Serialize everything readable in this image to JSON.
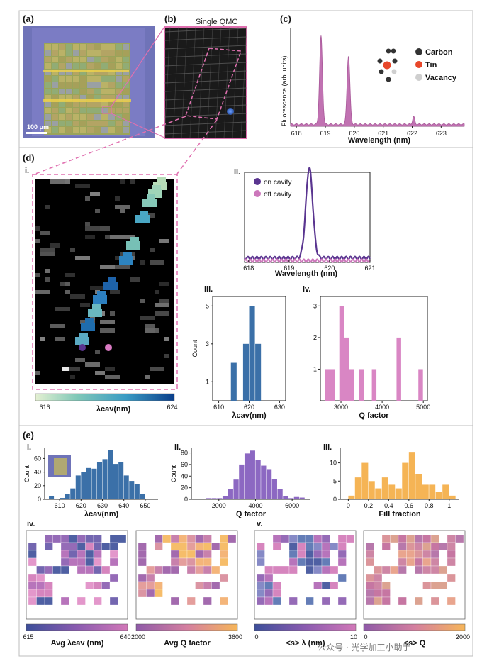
{
  "colors": {
    "pink": "#cc77bb",
    "purple": "#5a3590",
    "blue": "#3b70a8",
    "orange": "#f5b455",
    "pinkmid": "#d47fc0",
    "barPink": "#d986c4",
    "barPurple": "#8c68c2"
  },
  "panel_a": {
    "label": "(a)",
    "scale_text": "100 μm"
  },
  "panel_b": {
    "label": "(b)",
    "title": "Single QMC"
  },
  "panel_c": {
    "label": "(c)"
  },
  "panel_d": {
    "label": "(d)",
    "sub_i": "i.",
    "sub_ii": "ii.",
    "sub_iii": "iii.",
    "sub_iv": "iv.",
    "colorbar": {
      "min": "616",
      "max": "624",
      "label": "λcav(nm)"
    }
  },
  "panel_e": {
    "label": "(e)",
    "sub_i": "i.",
    "sub_ii": "ii.",
    "sub_iii": "iii.",
    "sub_iv": "iv.",
    "sub_v": "v.",
    "colorbars": [
      {
        "min": "615",
        "max": "640",
        "label": "Avg λcav (nm)",
        "colors": [
          "#3d4f9a",
          "#8a5bb0",
          "#d278b8"
        ]
      },
      {
        "min": "2000",
        "max": "3600",
        "label": "Avg Q factor",
        "colors": [
          "#8f5aa8",
          "#d47fa0",
          "#f6b65a"
        ]
      },
      {
        "min": "0",
        "max": "10",
        "label": "<s> λ (nm)",
        "colors": [
          "#3d4f9a",
          "#8a5bb0",
          "#d278b8"
        ]
      },
      {
        "min": "0",
        "max": "2000",
        "label": "<s> Q",
        "colors": [
          "#8f5aa8",
          "#d47fa0",
          "#f6b65a"
        ]
      }
    ]
  },
  "watermark": "公众号 · 光学加工小助手",
  "chart_data": [
    {
      "id": "c",
      "type": "area",
      "title": "",
      "xlabel": "Wavelength (nm)",
      "ylabel": "Fluorescence (arb. units)",
      "xlim": [
        617.8,
        623.8
      ],
      "xticks": [
        618,
        619,
        620,
        621,
        622,
        623
      ],
      "peaks": [
        {
          "x": 618.85,
          "h": 0.9,
          "w": 0.07
        },
        {
          "x": 619.8,
          "h": 0.7,
          "w": 0.07
        },
        {
          "x": 622.05,
          "h": 0.08,
          "w": 0.05
        }
      ],
      "legend": [
        "Carbon",
        "Tin",
        "Vacancy"
      ],
      "legend_colors": [
        "#333333",
        "#e8472a",
        "#cfcfcf"
      ]
    },
    {
      "id": "d-ii",
      "type": "line",
      "xlabel": "Wavelength (nm)",
      "ylabel": "",
      "xlim": [
        617.9,
        621
      ],
      "xticks": [
        618,
        619,
        620,
        621
      ],
      "series": [
        {
          "name": "on cavity",
          "color": "#5a3590",
          "peak": 619.5,
          "h": 1.0,
          "w": 0.12,
          "base": 0.05
        },
        {
          "name": "off cavity",
          "color": "#cc77bb",
          "peak": 619.5,
          "h": 0.0,
          "w": 0.12,
          "base": 0.02
        }
      ]
    },
    {
      "id": "d-iii",
      "type": "bar",
      "xlabel": "λcav(nm)",
      "ylabel": "Count",
      "xlim": [
        608,
        632
      ],
      "xticks": [
        610,
        620,
        630
      ],
      "yticks": [
        1,
        3,
        5
      ],
      "ylim": [
        0,
        5.5
      ],
      "color": "#3b70a8",
      "bins": [
        {
          "x0": 614,
          "x1": 616,
          "v": 2
        },
        {
          "x0": 618,
          "x1": 620,
          "v": 3
        },
        {
          "x0": 620,
          "x1": 622,
          "v": 5
        },
        {
          "x0": 622,
          "x1": 624,
          "v": 3
        }
      ]
    },
    {
      "id": "d-iv",
      "type": "bar",
      "xlabel": "Q factor",
      "ylabel": "",
      "xlim": [
        2500,
        5100
      ],
      "xticks": [
        3000,
        4000,
        5000
      ],
      "yticks": [
        1,
        2,
        3
      ],
      "ylim": [
        0,
        3.3
      ],
      "color": "#d986c4",
      "bins": [
        {
          "x0": 2620,
          "x1": 2740,
          "v": 1
        },
        {
          "x0": 2740,
          "x1": 2860,
          "v": 1
        },
        {
          "x0": 2960,
          "x1": 3080,
          "v": 3
        },
        {
          "x0": 3080,
          "x1": 3200,
          "v": 2
        },
        {
          "x0": 3200,
          "x1": 3320,
          "v": 1
        },
        {
          "x0": 3440,
          "x1": 3560,
          "v": 1
        },
        {
          "x0": 3750,
          "x1": 3870,
          "v": 1
        },
        {
          "x0": 4350,
          "x1": 4470,
          "v": 2
        },
        {
          "x0": 4880,
          "x1": 5000,
          "v": 1
        }
      ]
    },
    {
      "id": "e-i",
      "type": "bar",
      "xlabel": "λcav(nm)",
      "ylabel": "Count",
      "xlim": [
        603,
        656
      ],
      "xticks": [
        610,
        620,
        630,
        640,
        650
      ],
      "yticks": [
        0,
        20,
        40,
        60
      ],
      "ylim": [
        0,
        75
      ],
      "color": "#3b70a8",
      "bins": [
        {
          "x0": 605,
          "x1": 607.5,
          "v": 5
        },
        {
          "x0": 607.5,
          "x1": 610,
          "v": 1
        },
        {
          "x0": 610,
          "x1": 612.5,
          "v": 2
        },
        {
          "x0": 612.5,
          "x1": 615,
          "v": 8
        },
        {
          "x0": 615,
          "x1": 617.5,
          "v": 16
        },
        {
          "x0": 617.5,
          "x1": 620,
          "v": 35
        },
        {
          "x0": 620,
          "x1": 622.5,
          "v": 40
        },
        {
          "x0": 622.5,
          "x1": 625,
          "v": 46
        },
        {
          "x0": 625,
          "x1": 627.5,
          "v": 45
        },
        {
          "x0": 627.5,
          "x1": 630,
          "v": 55
        },
        {
          "x0": 630,
          "x1": 632.5,
          "v": 59
        },
        {
          "x0": 632.5,
          "x1": 635,
          "v": 72
        },
        {
          "x0": 635,
          "x1": 637.5,
          "v": 52
        },
        {
          "x0": 637.5,
          "x1": 640,
          "v": 55
        },
        {
          "x0": 640,
          "x1": 642.5,
          "v": 35
        },
        {
          "x0": 642.5,
          "x1": 645,
          "v": 27
        },
        {
          "x0": 645,
          "x1": 647.5,
          "v": 22
        },
        {
          "x0": 647.5,
          "x1": 650,
          "v": 8
        }
      ]
    },
    {
      "id": "e-ii",
      "type": "bar",
      "xlabel": "Q factor",
      "ylabel": "Count",
      "xlim": [
        500,
        7000
      ],
      "xticks": [
        2000,
        4000,
        6000
      ],
      "yticks": [
        0,
        20,
        40,
        60,
        80
      ],
      "ylim": [
        0,
        88
      ],
      "color": "#8c68c2",
      "bins": [
        {
          "x0": 1000,
          "x1": 1300,
          "v": 1
        },
        {
          "x0": 1300,
          "x1": 1600,
          "v": 2
        },
        {
          "x0": 1600,
          "x1": 1900,
          "v": 2
        },
        {
          "x0": 1900,
          "x1": 2200,
          "v": 2
        },
        {
          "x0": 2200,
          "x1": 2500,
          "v": 6
        },
        {
          "x0": 2500,
          "x1": 2800,
          "v": 18
        },
        {
          "x0": 2800,
          "x1": 3100,
          "v": 34
        },
        {
          "x0": 3100,
          "x1": 3400,
          "v": 60
        },
        {
          "x0": 3400,
          "x1": 3700,
          "v": 79
        },
        {
          "x0": 3700,
          "x1": 4000,
          "v": 84
        },
        {
          "x0": 4000,
          "x1": 4300,
          "v": 68
        },
        {
          "x0": 4300,
          "x1": 4600,
          "v": 58
        },
        {
          "x0": 4600,
          "x1": 4900,
          "v": 52
        },
        {
          "x0": 4900,
          "x1": 5200,
          "v": 35
        },
        {
          "x0": 5200,
          "x1": 5500,
          "v": 18
        },
        {
          "x0": 5500,
          "x1": 5800,
          "v": 6
        },
        {
          "x0": 5800,
          "x1": 6100,
          "v": 2
        },
        {
          "x0": 6100,
          "x1": 6400,
          "v": 4
        },
        {
          "x0": 6400,
          "x1": 6700,
          "v": 3
        }
      ]
    },
    {
      "id": "e-iii",
      "type": "bar",
      "xlabel": "Fill fraction",
      "ylabel": "",
      "xlim": [
        -0.08,
        1.1
      ],
      "xticks": [
        0,
        0.2,
        0.4,
        0.6,
        0.8,
        1.0
      ],
      "yticks": [
        0,
        5,
        10
      ],
      "ylim": [
        0,
        14
      ],
      "color": "#f5b455",
      "bins": [
        {
          "x0": 0,
          "x1": 0.066,
          "v": 1
        },
        {
          "x0": 0.066,
          "x1": 0.133,
          "v": 6
        },
        {
          "x0": 0.133,
          "x1": 0.2,
          "v": 10
        },
        {
          "x0": 0.2,
          "x1": 0.266,
          "v": 5
        },
        {
          "x0": 0.266,
          "x1": 0.333,
          "v": 3
        },
        {
          "x0": 0.333,
          "x1": 0.4,
          "v": 6
        },
        {
          "x0": 0.4,
          "x1": 0.466,
          "v": 4
        },
        {
          "x0": 0.466,
          "x1": 0.533,
          "v": 3
        },
        {
          "x0": 0.533,
          "x1": 0.6,
          "v": 10
        },
        {
          "x0": 0.6,
          "x1": 0.666,
          "v": 13
        },
        {
          "x0": 0.666,
          "x1": 0.733,
          "v": 7
        },
        {
          "x0": 0.733,
          "x1": 0.8,
          "v": 4
        },
        {
          "x0": 0.8,
          "x1": 0.866,
          "v": 4
        },
        {
          "x0": 0.866,
          "x1": 0.933,
          "v": 2
        },
        {
          "x0": 0.933,
          "x1": 1.0,
          "v": 4
        },
        {
          "x0": 1.0,
          "x1": 1.066,
          "v": 1
        }
      ]
    }
  ]
}
